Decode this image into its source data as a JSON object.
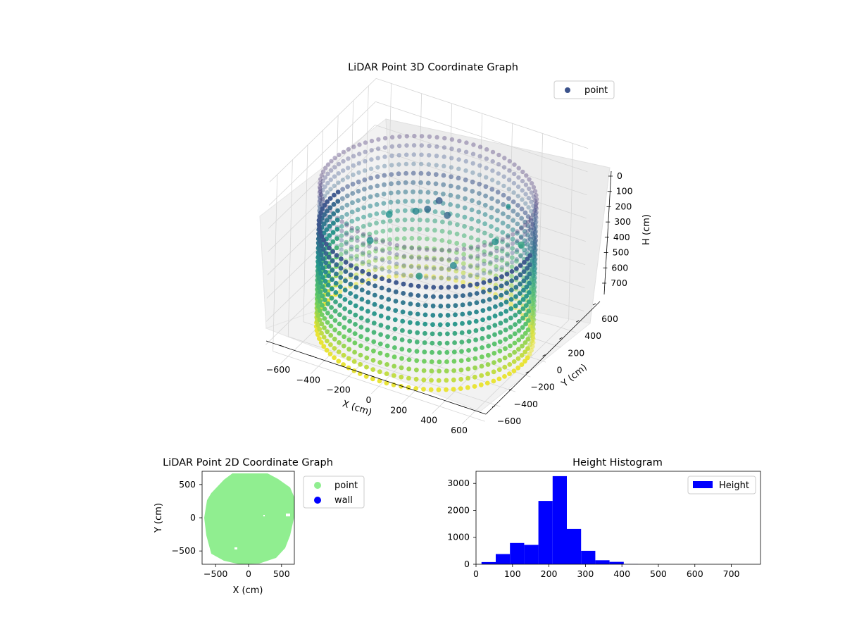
{
  "chart_data": [
    {
      "type": "scatter",
      "projection": "3d",
      "title": "LiDAR Point 3D Coordinate Graph",
      "xlabel": "X (cm)",
      "ylabel": "Y (cm)",
      "zlabel": "H (cm)",
      "xlim": [
        -700,
        700
      ],
      "ylim": [
        -700,
        700
      ],
      "zlim": [
        0,
        760
      ],
      "z_inverted": true,
      "xticks": [
        "−600",
        "−400",
        "−200",
        "0",
        "200",
        "400",
        "600"
      ],
      "yticks": [
        "−600",
        "−400",
        "−200",
        "0",
        "200",
        "400",
        "600"
      ],
      "zticks": [
        "0",
        "100",
        "200",
        "300",
        "400",
        "500",
        "600",
        "700"
      ],
      "colormap": "viridis",
      "grid": true,
      "legend": {
        "placement": "top-right",
        "entries": [
          {
            "label": "point",
            "color": "#3b528b"
          }
        ]
      },
      "wall": {
        "radius": 640,
        "h_top": 280,
        "h_bottom": 720
      },
      "points": [
        {
          "x": 0,
          "y": 150,
          "h": 200
        },
        {
          "x": -60,
          "y": 120,
          "h": 240
        },
        {
          "x": 80,
          "y": 100,
          "h": 230
        },
        {
          "x": -200,
          "y": 250,
          "h": 320
        },
        {
          "x": 300,
          "y": 300,
          "h": 360
        },
        {
          "x": 400,
          "y": 450,
          "h": 400
        },
        {
          "x": 250,
          "y": -150,
          "h": 330
        },
        {
          "x": -300,
          "y": -150,
          "h": 340
        },
        {
          "x": 100,
          "y": -300,
          "h": 360
        },
        {
          "x": -350,
          "y": 200,
          "h": 350
        },
        {
          "x": 600,
          "y": -150,
          "h": 0
        }
      ]
    },
    {
      "type": "scatter",
      "title": "LiDAR Point 2D Coordinate Graph",
      "xlabel": "X (cm)",
      "ylabel": "Y (cm)",
      "xlim": [
        -700,
        700
      ],
      "ylim": [
        -700,
        700
      ],
      "xticks": [
        -500,
        0,
        500
      ],
      "yticks": [
        -500,
        0,
        500
      ],
      "legend": {
        "placement": "outside-right",
        "entries": [
          {
            "label": "point",
            "color": "#90ee90"
          },
          {
            "label": "wall",
            "color": "#0000ff"
          }
        ]
      },
      "point_region": {
        "shape": "disc",
        "center": [
          0,
          0
        ],
        "radius": 660,
        "color": "#90ee90"
      }
    },
    {
      "type": "bar",
      "histogram": true,
      "title": "Height Histogram",
      "xlim": [
        0,
        780
      ],
      "ylim": [
        0,
        3450
      ],
      "xticks": [
        0,
        100,
        200,
        300,
        400,
        500,
        600,
        700
      ],
      "yticks": [
        0,
        1000,
        2000,
        3000
      ],
      "color": "#0000ff",
      "legend": {
        "placement": "top-right",
        "entries": [
          {
            "label": "Height",
            "color": "#0000ff"
          }
        ]
      },
      "bin_edges": [
        15,
        54,
        93,
        132,
        171,
        210,
        249,
        288,
        327,
        366,
        405,
        444,
        483,
        522,
        561,
        600,
        639,
        678,
        717,
        756,
        795
      ],
      "counts": [
        80,
        380,
        790,
        720,
        2350,
        3270,
        1310,
        500,
        150,
        90,
        5,
        0,
        0,
        0,
        0,
        0,
        0,
        0,
        0,
        0
      ]
    }
  ]
}
